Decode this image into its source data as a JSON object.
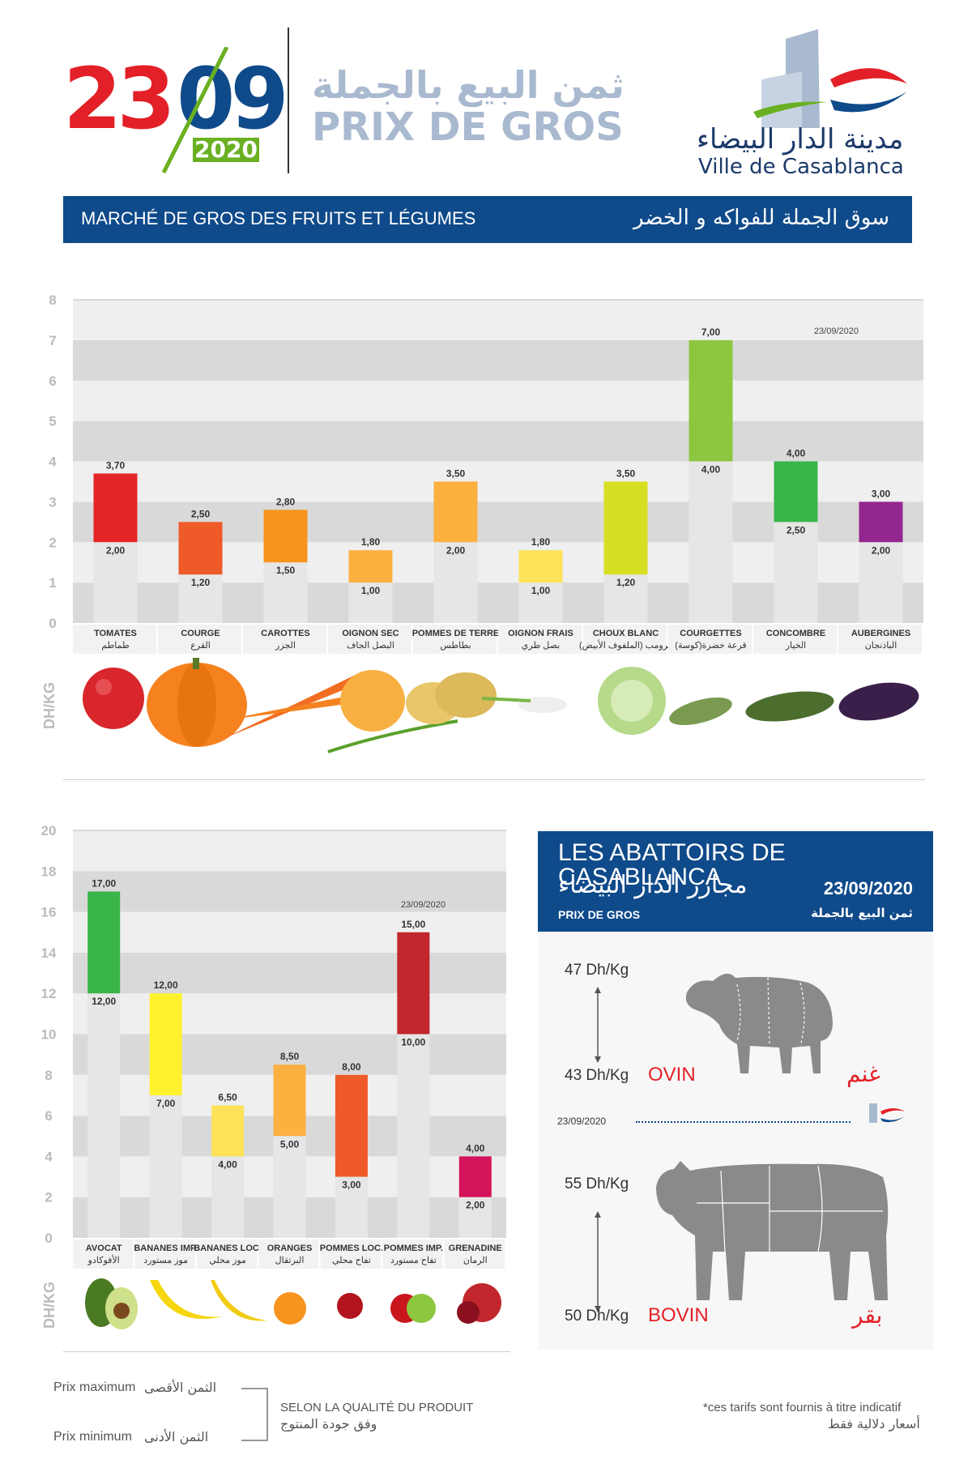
{
  "header": {
    "day": "23",
    "month": "09",
    "year": "2020",
    "title_ar": "ثمن البيع بالجملة",
    "title_fr": "PRIX DE GROS",
    "city_ar": "مدينة الدار البيضاء",
    "city_fr": "Ville de Casablanca"
  },
  "banner": {
    "fr": "MARCHÉ DE GROS DES FRUITS ET LÉGUMES",
    "ar": "سوق الجملة للفواكه و الخضر"
  },
  "colors": {
    "brand_blue": "#0f4a8a",
    "brand_red": "#e32027",
    "brand_green": "#6ab023",
    "light_text": "#a9b9cf"
  },
  "chart_data": [
    {
      "type": "bar",
      "subtype": "floating-range",
      "ylabel": "DH/KG",
      "ylim": [
        0,
        8
      ],
      "yticks": [
        0,
        1,
        2,
        3,
        4,
        5,
        6,
        7,
        8
      ],
      "date": "23/09/2020",
      "categories": [
        {
          "fr": "TOMATES",
          "ar": "طماطم",
          "min": 2.0,
          "max": 3.7,
          "min_label": "2,00",
          "max_label": "3,70",
          "color": "#e42528"
        },
        {
          "fr": "COURGE",
          "ar": "القرع",
          "min": 1.2,
          "max": 2.5,
          "min_label": "1,20",
          "max_label": "2,50",
          "color": "#ef5a29"
        },
        {
          "fr": "CAROTTES",
          "ar": "الجزر",
          "min": 1.5,
          "max": 2.8,
          "min_label": "1,50",
          "max_label": "2,80",
          "color": "#f7941e"
        },
        {
          "fr": "OIGNON SEC",
          "ar": "البصل الجاف",
          "min": 1.0,
          "max": 1.8,
          "min_label": "1,00",
          "max_label": "1,80",
          "color": "#fbb040"
        },
        {
          "fr": "POMMES DE TERRE",
          "ar": "بطاطس",
          "min": 2.0,
          "max": 3.5,
          "min_label": "2,00",
          "max_label": "3,50",
          "color": "#fbb040"
        },
        {
          "fr": "OIGNON FRAIS",
          "ar": "بصل طري",
          "min": 1.0,
          "max": 1.8,
          "min_label": "1,00",
          "max_label": "1,80",
          "color": "#fde25a"
        },
        {
          "fr": "CHOUX BLANC",
          "ar": "كرومب (الملفوف الأبيض)",
          "min": 1.2,
          "max": 3.5,
          "min_label": "1,20",
          "max_label": "3,50",
          "color": "#d7df23"
        },
        {
          "fr": "COURGETTES",
          "ar": "قرعة خضرة(كوسة)",
          "min": 4.0,
          "max": 7.0,
          "min_label": "4,00",
          "max_label": "7,00",
          "color": "#8dc63f"
        },
        {
          "fr": "CONCOMBRE",
          "ar": "الخيار",
          "min": 2.5,
          "max": 4.0,
          "min_label": "2,50",
          "max_label": "4,00",
          "color": "#39b54a"
        },
        {
          "fr": "AUBERGINES",
          "ar": "الباذنجان",
          "min": 2.0,
          "max": 3.0,
          "min_label": "2,00",
          "max_label": "3,00",
          "color": "#92278f"
        }
      ]
    },
    {
      "type": "bar",
      "subtype": "floating-range",
      "ylabel": "DH/KG",
      "ylim": [
        0,
        20
      ],
      "yticks": [
        0,
        2,
        4,
        6,
        8,
        10,
        12,
        14,
        16,
        18,
        20
      ],
      "date": "23/09/2020",
      "categories": [
        {
          "fr": "AVOCAT",
          "ar": "الأفوكادو",
          "min": 12.0,
          "max": 17.0,
          "min_label": "12,00",
          "max_label": "17,00",
          "color": "#39b54a"
        },
        {
          "fr": "BANANES IMP.",
          "ar": "موز مستورد",
          "min": 7.0,
          "max": 12.0,
          "min_label": "7,00",
          "max_label": "12,00",
          "color": "#fff22d"
        },
        {
          "fr": "BANANES LOC.",
          "ar": "موز محلي",
          "min": 4.0,
          "max": 6.5,
          "min_label": "4,00",
          "max_label": "6,50",
          "color": "#fde25a"
        },
        {
          "fr": "ORANGES",
          "ar": "البرتقال",
          "min": 5.0,
          "max": 8.5,
          "min_label": "5,00",
          "max_label": "8,50",
          "color": "#fbb040"
        },
        {
          "fr": "POMMES LOC.",
          "ar": "تفاح محلي",
          "min": 3.0,
          "max": 8.0,
          "min_label": "3,00",
          "max_label": "8,00",
          "color": "#ef5a29"
        },
        {
          "fr": "POMMES IMP.",
          "ar": "تفاح مستورد",
          "min": 10.0,
          "max": 15.0,
          "min_label": "10,00",
          "max_label": "15,00",
          "color": "#c1272d"
        },
        {
          "fr": "GRENADINE",
          "ar": "الرمان",
          "min": 2.0,
          "max": 4.0,
          "min_label": "2,00",
          "max_label": "4,00",
          "color": "#d4145a"
        }
      ]
    }
  ],
  "abattoirs": {
    "title": "LES ABATTOIRS DE CASABLANCA",
    "title_ar": "مجازر الدار البيضاء",
    "date": "23/09/2020",
    "sub_fr": "PRIX DE GROS",
    "sub_ar": "ثمن البيع بالجملة",
    "ovin": {
      "max": "47 Dh/Kg",
      "min": "43 Dh/Kg",
      "fr": "OVIN",
      "ar": "غنم"
    },
    "bovin": {
      "max": "55 Dh/Kg",
      "min": "50 Dh/Kg",
      "fr": "BOVIN",
      "ar": "بقر"
    },
    "divider_date": "23/09/2020"
  },
  "footer": {
    "max_fr": "Prix maximum",
    "max_ar": "الثمن الأقصى",
    "min_fr": "Prix minimum",
    "min_ar": "الثمن الأدنى",
    "quality_fr": "SELON LA QUALITÉ DU PRODUIT",
    "quality_ar": "وفق جودة المنتوج",
    "note_fr": "*ces tarifs sont fournis à titre indicatif",
    "note_ar": "أسعار دلالية فقط"
  }
}
